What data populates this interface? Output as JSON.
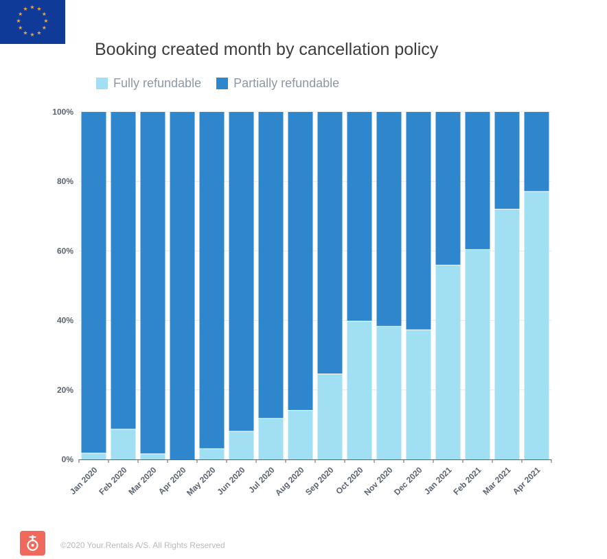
{
  "title": "Booking created month by cancellation policy",
  "footer": "©2020 Your.Rentals A/S. All Rights Reserved",
  "colors": {
    "fully": "#a1dff3",
    "partially": "#2e86cc",
    "flag": "#0f3a97",
    "flag_stars": "#f1a53b",
    "logo": "#ef6a5c"
  },
  "chart_data": {
    "type": "bar",
    "stacked": true,
    "title": "Booking created month by cancellation policy",
    "xlabel": "",
    "ylabel": "",
    "ylim": [
      0,
      100
    ],
    "yticks": [
      "0%",
      "20%",
      "40%",
      "60%",
      "80%",
      "100%"
    ],
    "ytick_values": [
      0,
      20,
      40,
      60,
      80,
      100
    ],
    "legend_position": "top-left",
    "categories": [
      "Jan 2020",
      "Feb 2020",
      "Mar 2020",
      "Apr 2020",
      "May 2020",
      "Jun 2020",
      "Jul 2020",
      "Aug 2020",
      "Sep 2020",
      "Oct 2020",
      "Nov 2020",
      "Dec 2020",
      "Jan 2021",
      "Feb 2021",
      "Mar 2021",
      "Apr 2021"
    ],
    "series": [
      {
        "name": "Fully refundable",
        "values": [
          1.8,
          8.7,
          1.6,
          0,
          3.1,
          8.1,
          11.8,
          14.1,
          24.6,
          39.8,
          38.3,
          37.3,
          55.9,
          60.4,
          72.0,
          77.1
        ]
      },
      {
        "name": "Partially refundable",
        "values": [
          98.2,
          91.3,
          98.4,
          100,
          96.9,
          91.9,
          88.2,
          85.9,
          75.4,
          60.2,
          61.7,
          62.7,
          44.1,
          39.6,
          28.0,
          22.9
        ]
      }
    ]
  }
}
